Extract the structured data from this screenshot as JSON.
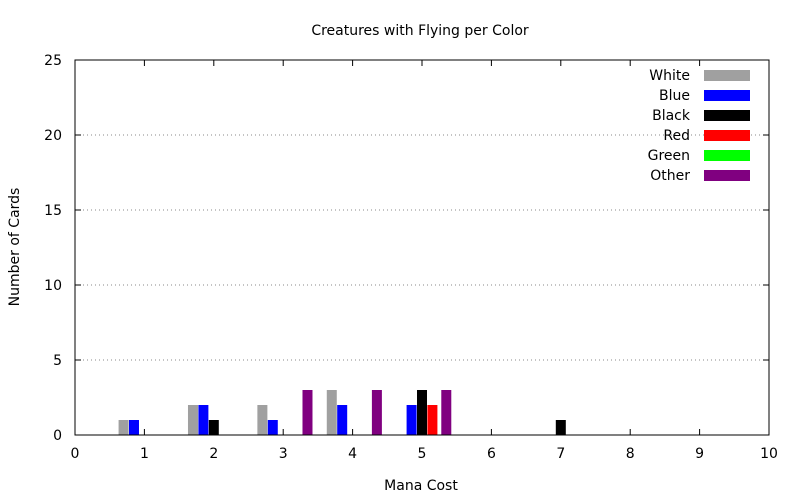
{
  "chart_data": {
    "type": "bar",
    "title": "Creatures with Flying per Color",
    "xlabel": "Mana Cost",
    "ylabel": "Number of Cards",
    "xlim": [
      0,
      10
    ],
    "ylim": [
      0,
      25
    ],
    "xticks": [
      "0",
      "1",
      "2",
      "3",
      "4",
      "5",
      "6",
      "7",
      "8",
      "9",
      "10"
    ],
    "yticks": [
      "0",
      "5",
      "10",
      "15",
      "20",
      "25"
    ],
    "grid": "horizontal",
    "legend_position": "top-right",
    "series": [
      {
        "name": "White",
        "color": "#a0a0a0",
        "points": [
          {
            "x": 0.7,
            "y": 1
          },
          {
            "x": 1.7,
            "y": 2
          },
          {
            "x": 2.7,
            "y": 2
          },
          {
            "x": 3.7,
            "y": 3
          }
        ]
      },
      {
        "name": "Blue",
        "color": "#0000ff",
        "points": [
          {
            "x": 0.85,
            "y": 1
          },
          {
            "x": 1.85,
            "y": 2
          },
          {
            "x": 2.85,
            "y": 1
          },
          {
            "x": 3.85,
            "y": 2
          },
          {
            "x": 4.85,
            "y": 2
          }
        ]
      },
      {
        "name": "Black",
        "color": "#000000",
        "points": [
          {
            "x": 2.0,
            "y": 1
          },
          {
            "x": 5.0,
            "y": 3
          },
          {
            "x": 7.0,
            "y": 1
          }
        ]
      },
      {
        "name": "Red",
        "color": "#ff0000",
        "points": [
          {
            "x": 5.15,
            "y": 2
          }
        ]
      },
      {
        "name": "Green",
        "color": "#00ff00",
        "points": []
      },
      {
        "name": "Other",
        "color": "#800080",
        "points": [
          {
            "x": 3.35,
            "y": 3
          },
          {
            "x": 4.35,
            "y": 3
          },
          {
            "x": 5.35,
            "y": 3
          }
        ]
      }
    ]
  }
}
